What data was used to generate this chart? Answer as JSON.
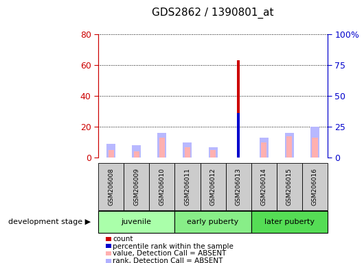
{
  "title": "GDS2862 / 1390801_at",
  "samples": [
    "GSM206008",
    "GSM206009",
    "GSM206010",
    "GSM206011",
    "GSM206012",
    "GSM206013",
    "GSM206014",
    "GSM206015",
    "GSM206016"
  ],
  "count_values": [
    0,
    0,
    0,
    0,
    0,
    63,
    0,
    0,
    0
  ],
  "percentile_values": [
    0,
    0,
    0,
    0,
    0,
    36,
    0,
    0,
    0
  ],
  "absent_value_values": [
    5,
    4,
    13,
    7,
    5,
    0,
    10,
    14,
    13
  ],
  "absent_rank_values": [
    9,
    8,
    16,
    10,
    7,
    0,
    13,
    16,
    20
  ],
  "ylim_left": [
    0,
    80
  ],
  "ylim_right": [
    0,
    100
  ],
  "yticks_left": [
    0,
    20,
    40,
    60,
    80
  ],
  "yticks_right": [
    0,
    25,
    50,
    75,
    100
  ],
  "ytick_labels_left": [
    "0",
    "20",
    "40",
    "60",
    "80"
  ],
  "ytick_labels_right": [
    "0",
    "25",
    "50",
    "75",
    "100%"
  ],
  "left_axis_color": "#cc0000",
  "right_axis_color": "#0000cc",
  "legend_items": [
    {
      "label": "count",
      "color": "#cc0000"
    },
    {
      "label": "percentile rank within the sample",
      "color": "#0000cc"
    },
    {
      "label": "value, Detection Call = ABSENT",
      "color": "#ffb0b0"
    },
    {
      "label": "rank, Detection Call = ABSENT",
      "color": "#b0b0ff"
    }
  ],
  "group_spans": [
    [
      0,
      3,
      "juvenile"
    ],
    [
      3,
      6,
      "early puberty"
    ],
    [
      6,
      9,
      "later puberty"
    ]
  ],
  "group_colors": {
    "juvenile": "#aaffaa",
    "early puberty": "#88ee88",
    "later puberty": "#55dd55"
  },
  "development_stage_label": "development stage",
  "background_color": "#ffffff",
  "sample_box_color": "#cccccc",
  "plot_bg_color": "#ffffff"
}
